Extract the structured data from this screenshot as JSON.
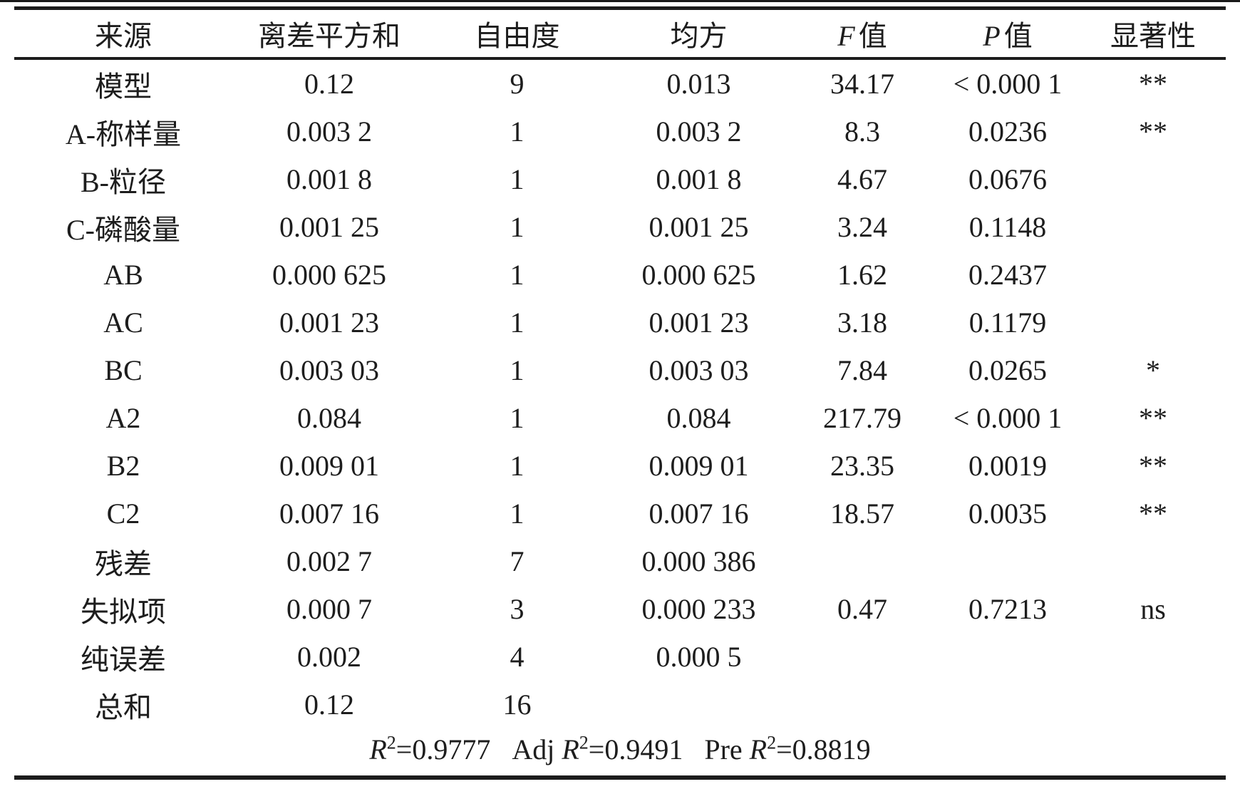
{
  "table": {
    "columns": [
      {
        "italic": "",
        "label": "来源"
      },
      {
        "italic": "",
        "label": "离差平方和"
      },
      {
        "italic": "",
        "label": "自由度"
      },
      {
        "italic": "",
        "label": "均方"
      },
      {
        "italic": "F",
        "label": "值"
      },
      {
        "italic": "P",
        "label": "值"
      },
      {
        "italic": "",
        "label": "显著性"
      }
    ],
    "rows": [
      [
        "模型",
        "0.12",
        "9",
        "0.013",
        "34.17",
        "< 0.000 1",
        "**"
      ],
      [
        "A-称样量",
        "0.003 2",
        "1",
        "0.003 2",
        "8.3",
        "0.0236",
        "**"
      ],
      [
        "B-粒径",
        "0.001 8",
        "1",
        "0.001 8",
        "4.67",
        "0.0676",
        ""
      ],
      [
        "C-磷酸量",
        "0.001 25",
        "1",
        "0.001 25",
        "3.24",
        "0.1148",
        ""
      ],
      [
        "AB",
        "0.000 625",
        "1",
        "0.000 625",
        "1.62",
        "0.2437",
        ""
      ],
      [
        "AC",
        "0.001 23",
        "1",
        "0.001 23",
        "3.18",
        "0.1179",
        ""
      ],
      [
        "BC",
        "0.003 03",
        "1",
        "0.003 03",
        "7.84",
        "0.0265",
        "*"
      ],
      [
        "A2",
        "0.084",
        "1",
        "0.084",
        "217.79",
        "< 0.000 1",
        "**"
      ],
      [
        "B2",
        "0.009 01",
        "1",
        "0.009 01",
        "23.35",
        "0.0019",
        "**"
      ],
      [
        "C2",
        "0.007 16",
        "1",
        "0.007 16",
        "18.57",
        "0.0035",
        "**"
      ],
      [
        "残差",
        "0.002 7",
        "7",
        "0.000 386",
        "",
        "",
        ""
      ],
      [
        "失拟项",
        "0.000 7",
        "3",
        "0.000 233",
        "0.47",
        "0.7213",
        "ns"
      ],
      [
        "纯误差",
        "0.002",
        "4",
        "0.000 5",
        "",
        "",
        ""
      ],
      [
        "总和",
        "0.12",
        "16",
        "",
        "",
        "",
        ""
      ]
    ]
  },
  "footer": {
    "stats": [
      {
        "prefix": "",
        "symbol": "R",
        "exponent": "2",
        "value": "0.9777"
      },
      {
        "prefix": "Adj",
        "symbol": "R",
        "exponent": "2",
        "value": "0.9491"
      },
      {
        "prefix": "Pre",
        "symbol": "R",
        "exponent": "2",
        "value": "0.8819"
      }
    ]
  },
  "colors": {
    "ink": "#1d1d1d",
    "rule": "#1c1c1c",
    "background": "#ffffff"
  }
}
